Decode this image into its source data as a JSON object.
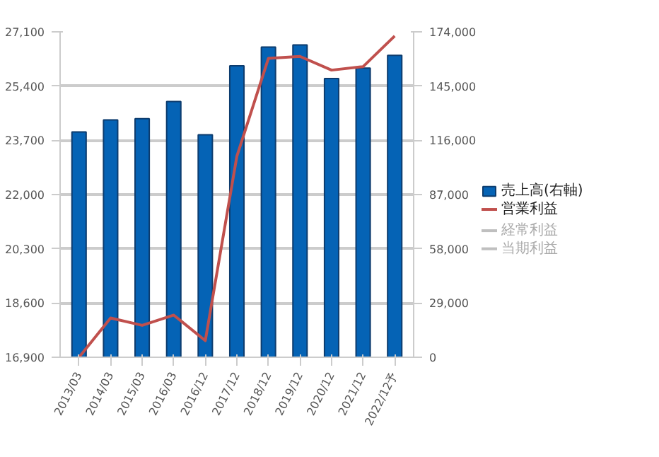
{
  "chart_data": {
    "type": "bar",
    "categories": [
      "2013/03",
      "2014/03",
      "2015/03",
      "2016/03",
      "2016/12",
      "2017/12",
      "2018/12",
      "2019/12",
      "2020/12",
      "2021/12",
      "2022/12予"
    ],
    "series": [
      {
        "name": "売上高(右軸)",
        "axis": "y2",
        "color": "#0563b5",
        "values": [
          120500,
          126900,
          127600,
          136700,
          119000,
          155800,
          165900,
          167000,
          149000,
          154600,
          161400
        ]
      },
      {
        "name": "営業利益",
        "type": "line",
        "color": "#c0504d",
        "values": [
          16900,
          18130,
          17900,
          18220,
          17420,
          23200,
          26270,
          26330,
          25900,
          26010,
          26970
        ]
      },
      {
        "name": "経常利益",
        "type": "line",
        "color": "#bfbfbf",
        "values": [
          null,
          null,
          null,
          null,
          null,
          null,
          null,
          null,
          null,
          null,
          null
        ]
      },
      {
        "name": "当期利益",
        "type": "line",
        "color": "#bfbfbf",
        "values": [
          null,
          null,
          null,
          null,
          null,
          null,
          null,
          null,
          null,
          null,
          null
        ]
      }
    ],
    "ylim": [
      16900,
      27100
    ],
    "yticks": [
      {
        "value": 16900,
        "label": "16,900"
      },
      {
        "value": 18600,
        "label": "18,600"
      },
      {
        "value": 20300,
        "label": "20,300"
      },
      {
        "value": 22000,
        "label": "22,000"
      },
      {
        "value": 23700,
        "label": "23,700"
      },
      {
        "value": 25400,
        "label": "25,400"
      },
      {
        "value": 27100,
        "label": "27,100"
      }
    ],
    "y2lim": [
      0,
      174000
    ],
    "y2ticks": [
      0,
      {
        "value": 29000,
        "label": "29,000"
      },
      {
        "value": 58000,
        "label": "58,000"
      },
      {
        "value": 87000,
        "label": "87,000"
      },
      {
        "value": 116000,
        "label": "116,000"
      },
      {
        "value": 145000,
        "label": "145,000"
      },
      {
        "value": 174000,
        "label": "174,000"
      }
    ],
    "grid": "y",
    "legend": "right",
    "marker": "none",
    "line_style": "solid"
  }
}
